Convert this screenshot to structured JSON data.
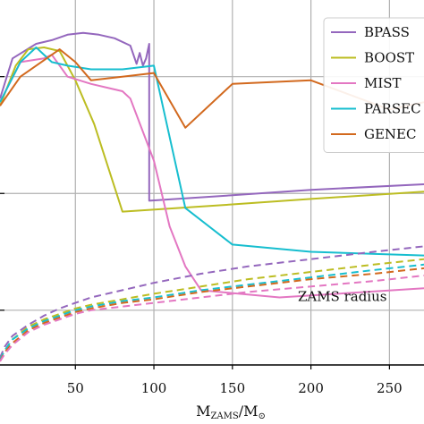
{
  "chart_data": {
    "type": "line",
    "xlabel_main": "M",
    "xlabel_sub": "ZAMS",
    "xlabel_slash": "/M",
    "xlabel_sun": "⊙",
    "xlim": [
      2,
      272
    ],
    "ylim": [
      0,
      1
    ],
    "x_ticks": [
      50,
      100,
      150,
      200,
      250
    ],
    "y_gridlines": [
      0.15,
      0.47,
      0.79
    ],
    "grid": true,
    "legend_position": "top-right",
    "annotation": {
      "text": "ZAMS radius",
      "x": 220,
      "y": 0.175
    },
    "series": [
      {
        "name": "BPASS",
        "color": "#9467bd",
        "dash": false,
        "points": [
          [
            2,
            0.73
          ],
          [
            10,
            0.84
          ],
          [
            25,
            0.88
          ],
          [
            35,
            0.89
          ],
          [
            45,
            0.905
          ],
          [
            55,
            0.91
          ],
          [
            65,
            0.905
          ],
          [
            75,
            0.895
          ],
          [
            85,
            0.875
          ],
          [
            89,
            0.825
          ],
          [
            91,
            0.855
          ],
          [
            93,
            0.82
          ],
          [
            95,
            0.84
          ],
          [
            97,
            0.88
          ],
          [
            97,
            0.45
          ],
          [
            150,
            0.465
          ],
          [
            200,
            0.48
          ],
          [
            272,
            0.495
          ]
        ]
      },
      {
        "name": "BOOST",
        "color": "#bcbd22",
        "dash": false,
        "points": [
          [
            2,
            0.71
          ],
          [
            12,
            0.82
          ],
          [
            20,
            0.865
          ],
          [
            30,
            0.87
          ],
          [
            40,
            0.86
          ],
          [
            50,
            0.78
          ],
          [
            62,
            0.66
          ],
          [
            80,
            0.42
          ],
          [
            150,
            0.44
          ],
          [
            200,
            0.455
          ],
          [
            272,
            0.475
          ]
        ]
      },
      {
        "name": "MIST",
        "color": "#e377c2",
        "dash": false,
        "points": [
          [
            2,
            0.72
          ],
          [
            15,
            0.83
          ],
          [
            30,
            0.84
          ],
          [
            35,
            0.85
          ],
          [
            45,
            0.79
          ],
          [
            60,
            0.77
          ],
          [
            80,
            0.75
          ],
          [
            85,
            0.73
          ],
          [
            100,
            0.56
          ],
          [
            110,
            0.38
          ],
          [
            120,
            0.27
          ],
          [
            130,
            0.205
          ],
          [
            180,
            0.185
          ],
          [
            272,
            0.21
          ]
        ]
      },
      {
        "name": "PARSEC",
        "color": "#17becf",
        "dash": false,
        "points": [
          [
            2,
            0.72
          ],
          [
            15,
            0.83
          ],
          [
            25,
            0.87
          ],
          [
            35,
            0.83
          ],
          [
            45,
            0.82
          ],
          [
            60,
            0.81
          ],
          [
            80,
            0.81
          ],
          [
            100,
            0.82
          ],
          [
            120,
            0.43
          ],
          [
            150,
            0.33
          ],
          [
            200,
            0.31
          ],
          [
            272,
            0.3
          ]
        ]
      },
      {
        "name": "GENEC",
        "color": "#d2691e",
        "dash": false,
        "points": [
          [
            2,
            0.71
          ],
          [
            15,
            0.79
          ],
          [
            30,
            0.835
          ],
          [
            40,
            0.865
          ],
          [
            50,
            0.83
          ],
          [
            60,
            0.78
          ],
          [
            100,
            0.8
          ],
          [
            120,
            0.65
          ],
          [
            150,
            0.77
          ],
          [
            200,
            0.78
          ],
          [
            250,
            0.7
          ],
          [
            272,
            0.72
          ]
        ]
      },
      {
        "name": "",
        "color": "#9467bd",
        "dash": true,
        "points": [
          [
            2,
            0.02
          ],
          [
            5,
            0.05
          ],
          [
            10,
            0.08
          ],
          [
            20,
            0.11
          ],
          [
            30,
            0.135
          ],
          [
            40,
            0.155
          ],
          [
            50,
            0.17
          ],
          [
            60,
            0.185
          ],
          [
            80,
            0.205
          ],
          [
            100,
            0.225
          ],
          [
            130,
            0.25
          ],
          [
            160,
            0.27
          ],
          [
            200,
            0.29
          ],
          [
            240,
            0.31
          ],
          [
            272,
            0.325
          ]
        ]
      },
      {
        "name": "",
        "color": "#bcbd22",
        "dash": true,
        "points": [
          [
            2,
            0.015
          ],
          [
            5,
            0.04
          ],
          [
            10,
            0.07
          ],
          [
            20,
            0.105
          ],
          [
            30,
            0.125
          ],
          [
            40,
            0.14
          ],
          [
            50,
            0.155
          ],
          [
            60,
            0.165
          ],
          [
            80,
            0.18
          ],
          [
            100,
            0.195
          ],
          [
            130,
            0.215
          ],
          [
            160,
            0.235
          ],
          [
            200,
            0.255
          ],
          [
            240,
            0.275
          ],
          [
            272,
            0.29
          ]
        ]
      },
      {
        "name": "",
        "color": "#17becf",
        "dash": true,
        "points": [
          [
            2,
            0.015
          ],
          [
            5,
            0.04
          ],
          [
            10,
            0.07
          ],
          [
            20,
            0.1
          ],
          [
            30,
            0.12
          ],
          [
            40,
            0.135
          ],
          [
            50,
            0.15
          ],
          [
            60,
            0.16
          ],
          [
            80,
            0.175
          ],
          [
            100,
            0.185
          ],
          [
            130,
            0.205
          ],
          [
            160,
            0.22
          ],
          [
            200,
            0.24
          ],
          [
            240,
            0.26
          ],
          [
            272,
            0.275
          ]
        ]
      },
      {
        "name": "",
        "color": "#d2691e",
        "dash": true,
        "points": [
          [
            2,
            0.01
          ],
          [
            5,
            0.035
          ],
          [
            10,
            0.06
          ],
          [
            20,
            0.095
          ],
          [
            30,
            0.115
          ],
          [
            40,
            0.13
          ],
          [
            50,
            0.145
          ],
          [
            60,
            0.155
          ],
          [
            80,
            0.17
          ],
          [
            100,
            0.18
          ],
          [
            130,
            0.2
          ],
          [
            160,
            0.215
          ],
          [
            200,
            0.235
          ],
          [
            240,
            0.25
          ],
          [
            272,
            0.265
          ]
        ]
      },
      {
        "name": "",
        "color": "#e377c2",
        "dash": true,
        "points": [
          [
            2,
            0.01
          ],
          [
            5,
            0.03
          ],
          [
            10,
            0.055
          ],
          [
            20,
            0.09
          ],
          [
            30,
            0.11
          ],
          [
            40,
            0.125
          ],
          [
            50,
            0.14
          ],
          [
            60,
            0.15
          ],
          [
            80,
            0.16
          ],
          [
            100,
            0.17
          ],
          [
            130,
            0.185
          ],
          [
            160,
            0.2
          ],
          [
            200,
            0.215
          ],
          [
            240,
            0.23
          ],
          [
            272,
            0.245
          ]
        ]
      }
    ]
  }
}
